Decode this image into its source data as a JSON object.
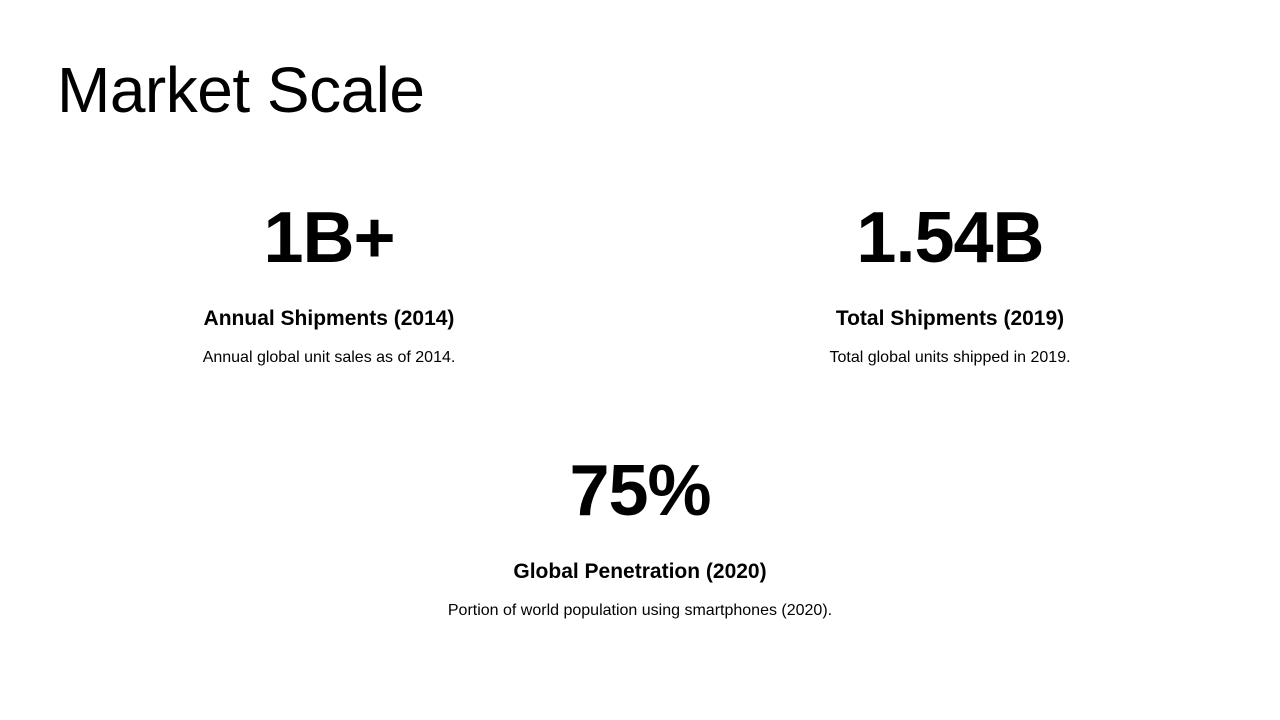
{
  "slide": {
    "title": "Market Scale",
    "stats": [
      {
        "value": "1B+",
        "label": "Annual Shipments (2014)",
        "description": "Annual global unit sales as of 2014."
      },
      {
        "value": "1.54B",
        "label": "Total Shipments (2019)",
        "description": "Total global units shipped in 2019."
      },
      {
        "value": "75%",
        "label": "Global Penetration (2020)",
        "description": "Portion of world population using smartphones (2020)."
      }
    ]
  }
}
